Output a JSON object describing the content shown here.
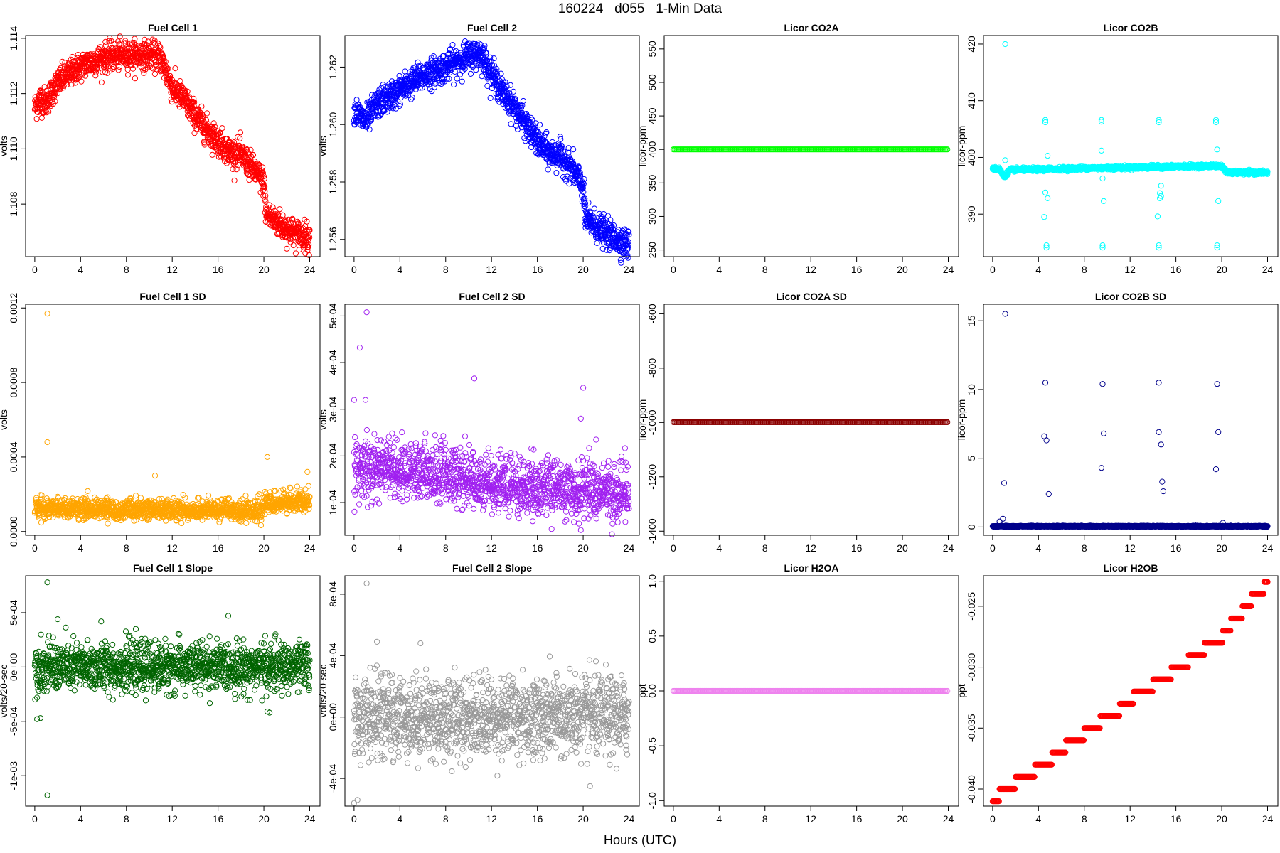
{
  "figure": {
    "title": "160224   d055   1-Min Data",
    "xlabel": "Hours (UTC)"
  },
  "chart_data": [
    {
      "id": "fc1",
      "type": "scatter",
      "title": "Fuel Cell 1",
      "ylabel": "volts",
      "color": "#ff0000",
      "xlim": [
        -0.8,
        24.9
      ],
      "ylim": [
        1.1061,
        1.1141
      ],
      "xticks": [
        0,
        4,
        8,
        12,
        16,
        20,
        24
      ],
      "yticks": [
        1.108,
        1.11,
        1.112,
        1.114
      ],
      "yticklabels": [
        "1.108",
        "1.110",
        "1.112",
        "1.114"
      ],
      "grid": false,
      "n_points": 1440,
      "trend_x": [
        0,
        0.5,
        1,
        2,
        4,
        6,
        8,
        9,
        10,
        11,
        12,
        13,
        14,
        15,
        16,
        17,
        18,
        19,
        19.8,
        20,
        20.2,
        21,
        22,
        23,
        24
      ],
      "trend_y": [
        1.1115,
        1.1118,
        1.1117,
        1.1124,
        1.113,
        1.1133,
        1.1134,
        1.1134,
        1.1134,
        1.1133,
        1.1122,
        1.1118,
        1.1112,
        1.1107,
        1.1103,
        1.1099,
        1.1098,
        1.1093,
        1.1089,
        1.1088,
        1.1076,
        1.1074,
        1.1071,
        1.1069,
        1.1068
      ],
      "noise": 0.00025
    },
    {
      "id": "fc2",
      "type": "scatter",
      "title": "Fuel Cell 2",
      "ylabel": "volts",
      "color": "#0000ff",
      "xlim": [
        -0.8,
        24.9
      ],
      "ylim": [
        1.2554,
        1.2631
      ],
      "xticks": [
        0,
        4,
        8,
        12,
        16,
        20,
        24
      ],
      "yticks": [
        1.256,
        1.258,
        1.26,
        1.262
      ],
      "yticklabels": [
        "1.256",
        "1.258",
        "1.260",
        "1.262"
      ],
      "grid": false,
      "n_points": 1440,
      "trend_x": [
        0,
        0.5,
        1,
        2,
        4,
        6,
        8,
        10,
        11,
        12,
        13,
        14,
        15,
        16,
        17,
        18,
        19,
        20,
        20.2,
        21,
        22,
        23,
        24
      ],
      "trend_y": [
        1.2605,
        1.2603,
        1.2601,
        1.2607,
        1.2612,
        1.2617,
        1.262,
        1.2624,
        1.2625,
        1.2618,
        1.2611,
        1.2606,
        1.26,
        1.2594,
        1.259,
        1.2589,
        1.2585,
        1.2578,
        1.2567,
        1.2565,
        1.2562,
        1.256,
        1.2558
      ],
      "noise": 0.00025
    },
    {
      "id": "co2a",
      "type": "scatter",
      "title": "Licor CO2A",
      "ylabel": "licor-ppm",
      "color": "#00ff00",
      "xlim": [
        -0.8,
        24.9
      ],
      "ylim": [
        240,
        570
      ],
      "xticks": [
        0,
        4,
        8,
        12,
        16,
        20,
        24
      ],
      "yticks": [
        250,
        300,
        350,
        400,
        450,
        500,
        550
      ],
      "yticklabels": [
        "250",
        "300",
        "350",
        "400",
        "450",
        "500",
        "550"
      ],
      "grid": false,
      "n_points": 1440,
      "trend_x": [
        0,
        24
      ],
      "trend_y": [
        400,
        400
      ],
      "noise": 0
    },
    {
      "id": "co2b",
      "type": "scatter",
      "title": "Licor CO2B",
      "ylabel": "licor-ppm",
      "color": "#00ffff",
      "xlim": [
        -0.8,
        24.9
      ],
      "ylim": [
        382.5,
        421.5
      ],
      "xticks": [
        0,
        4,
        8,
        12,
        16,
        20,
        24
      ],
      "yticks": [
        390,
        400,
        410,
        420
      ],
      "yticklabels": [
        "390",
        "400",
        "410",
        "420"
      ],
      "grid": false,
      "n_points": 1440,
      "trend_x": [
        0,
        0.6,
        1.0,
        1.5,
        4,
        8,
        12,
        16,
        20,
        20.5,
        24
      ],
      "trend_y": [
        398,
        398,
        396.5,
        397.8,
        397.9,
        398.1,
        398.2,
        398.4,
        398.5,
        397.3,
        397.3
      ],
      "noise": 0.15,
      "outliers": [
        [
          1.1,
          420
        ],
        [
          1.1,
          399.5
        ],
        [
          1.0,
          397
        ],
        [
          4.6,
          406.6
        ],
        [
          4.6,
          406.2
        ],
        [
          4.6,
          393.8
        ],
        [
          4.5,
          389.5
        ],
        [
          4.7,
          384.5
        ],
        [
          4.7,
          384.1
        ],
        [
          4.8,
          392.8
        ],
        [
          4.8,
          400.3
        ],
        [
          9.5,
          406.6
        ],
        [
          9.5,
          406.3
        ],
        [
          9.5,
          401.2
        ],
        [
          9.6,
          396.3
        ],
        [
          9.7,
          392.3
        ],
        [
          9.6,
          384.5
        ],
        [
          9.6,
          384.1
        ],
        [
          14.5,
          406.6
        ],
        [
          14.5,
          406.2
        ],
        [
          14.4,
          389.6
        ],
        [
          14.6,
          392.8
        ],
        [
          14.7,
          393.2
        ],
        [
          14.6,
          393.7
        ],
        [
          14.7,
          395
        ],
        [
          14.5,
          384.5
        ],
        [
          14.5,
          384.1
        ],
        [
          19.5,
          406.6
        ],
        [
          19.5,
          406.2
        ],
        [
          19.6,
          401.4
        ],
        [
          19.7,
          392.3
        ],
        [
          19.6,
          384.5
        ],
        [
          19.6,
          384.1
        ]
      ]
    },
    {
      "id": "fc1sd",
      "type": "scatter",
      "title": "Fuel Cell 1 SD",
      "ylabel": "volts",
      "color": "#ffa500",
      "xlim": [
        -0.8,
        24.9
      ],
      "ylim": [
        -2e-05,
        0.00122
      ],
      "xticks": [
        0,
        4,
        8,
        12,
        16,
        20,
        24
      ],
      "yticks": [
        0,
        0.0004,
        0.0008,
        0.0012
      ],
      "yticklabels": [
        "0.0000",
        "0.0004",
        "0.0008",
        "0.0012"
      ],
      "grid": false,
      "n_points": 1440,
      "trend_x": [
        0,
        19.8,
        20,
        21,
        24
      ],
      "trend_y": [
        0.00012,
        0.00011,
        0.00015,
        0.00015,
        0.00016
      ],
      "noise": 3e-05,
      "outliers": [
        [
          1.1,
          0.00117
        ],
        [
          1.1,
          0.00048
        ],
        [
          10.5,
          0.0003
        ],
        [
          20.3,
          0.0004
        ],
        [
          23.8,
          0.00032
        ]
      ]
    },
    {
      "id": "fc2sd",
      "type": "scatter",
      "title": "Fuel Cell 2 SD",
      "ylabel": "volts",
      "color": "#a020f0",
      "xlim": [
        -0.8,
        24.9
      ],
      "ylim": [
        3e-05,
        0.000525
      ],
      "xticks": [
        0,
        4,
        8,
        12,
        16,
        20,
        24
      ],
      "yticks": [
        0.0001,
        0.0002,
        0.0003,
        0.0004,
        0.0005
      ],
      "yticklabels": [
        "1e-04",
        "2e-04",
        "3e-04",
        "4e-04",
        "5e-04"
      ],
      "grid": false,
      "n_points": 1440,
      "trend_x": [
        0,
        2,
        5,
        8,
        12,
        16,
        20,
        24
      ],
      "trend_y": [
        0.000165,
        0.00017,
        0.00017,
        0.000155,
        0.00014,
        0.00013,
        0.000125,
        0.000125
      ],
      "noise": 3.5e-05,
      "outliers": [
        [
          1.1,
          0.000508
        ],
        [
          0.5,
          0.000432
        ],
        [
          0,
          0.00032
        ],
        [
          1.0,
          0.00032
        ],
        [
          10.5,
          0.000366
        ],
        [
          20,
          0.000346
        ],
        [
          19.8,
          0.00028
        ]
      ]
    },
    {
      "id": "co2asd",
      "type": "scatter",
      "title": "Licor CO2A SD",
      "ylabel": "licor-ppm",
      "color": "#8b0000",
      "xlim": [
        -0.8,
        24.9
      ],
      "ylim": [
        -1415,
        -565
      ],
      "xticks": [
        0,
        4,
        8,
        12,
        16,
        20,
        24
      ],
      "yticks": [
        -1400,
        -1200,
        -1000,
        -800,
        -600
      ],
      "yticklabels": [
        "-1400",
        "-1200",
        "-1000",
        "-800",
        "-600"
      ],
      "grid": false,
      "n_points": 1440,
      "trend_x": [
        0,
        24
      ],
      "trend_y": [
        -999,
        -999
      ],
      "noise": 0
    },
    {
      "id": "co2bsd",
      "type": "scatter",
      "title": "Licor CO2B SD",
      "ylabel": "licor-ppm",
      "color": "#00008b",
      "xlim": [
        -0.8,
        24.9
      ],
      "ylim": [
        -0.6,
        16.2
      ],
      "xticks": [
        0,
        4,
        8,
        12,
        16,
        20,
        24
      ],
      "yticks": [
        0,
        5,
        10,
        15
      ],
      "yticklabels": [
        "0",
        "5",
        "10",
        "15"
      ],
      "grid": false,
      "n_points": 1440,
      "trend_x": [
        0,
        24
      ],
      "trend_y": [
        0.05,
        0.05
      ],
      "noise": 0.02,
      "outliers": [
        [
          1.1,
          15.5
        ],
        [
          1.0,
          3.2
        ],
        [
          0.9,
          0.6
        ],
        [
          0.6,
          0.4
        ],
        [
          4.6,
          10.5
        ],
        [
          4.5,
          6.6
        ],
        [
          4.7,
          6.3
        ],
        [
          4.9,
          2.4
        ],
        [
          9.6,
          10.4
        ],
        [
          9.7,
          6.8
        ],
        [
          9.5,
          4.3
        ],
        [
          14.5,
          10.5
        ],
        [
          14.5,
          6.9
        ],
        [
          14.7,
          6.0
        ],
        [
          14.8,
          3.3
        ],
        [
          14.9,
          2.6
        ],
        [
          19.6,
          10.4
        ],
        [
          19.7,
          6.9
        ],
        [
          19.5,
          4.2
        ],
        [
          20.1,
          0.3
        ],
        [
          17.6,
          0.15
        ]
      ]
    },
    {
      "id": "fc1slope",
      "type": "scatter",
      "title": "Fuel Cell 1 Slope",
      "ylabel": "volts/20-sec",
      "color": "#006400",
      "xlim": [
        -0.8,
        24.9
      ],
      "ylim": [
        -0.00128,
        0.00084
      ],
      "xticks": [
        0,
        4,
        8,
        12,
        16,
        20,
        24
      ],
      "yticks": [
        -0.001,
        -0.0005,
        0,
        0.0005
      ],
      "yticklabels": [
        "-1e-03",
        "-5e-04",
        "0e+00",
        "5e-04"
      ],
      "grid": false,
      "n_points": 1440,
      "trend_x": [
        0,
        24
      ],
      "trend_y": [
        0,
        0
      ],
      "noise": 0.00011,
      "outliers": [
        [
          1.1,
          0.00078
        ],
        [
          1.1,
          -0.00118
        ],
        [
          0.2,
          -0.00048
        ],
        [
          0.5,
          -0.00047
        ],
        [
          2.0,
          0.00044
        ],
        [
          5.8,
          0.00042
        ],
        [
          20.3,
          -0.00041
        ],
        [
          20.5,
          -0.00042
        ]
      ]
    },
    {
      "id": "fc2slope",
      "type": "scatter",
      "title": "Fuel Cell 2 Slope",
      "ylabel": "volts/20-sec",
      "color": "#999999",
      "xlim": [
        -0.8,
        24.9
      ],
      "ylim": [
        -0.00058,
        0.00092
      ],
      "xticks": [
        0,
        4,
        8,
        12,
        16,
        20,
        24
      ],
      "yticks": [
        -0.0004,
        0,
        0.0004,
        0.0008
      ],
      "yticklabels": [
        "-4e-04",
        "0e+00",
        "4e-04",
        "8e-04"
      ],
      "grid": false,
      "n_points": 1440,
      "trend_x": [
        0,
        24
      ],
      "trend_y": [
        0,
        0
      ],
      "noise": 0.00013,
      "outliers": [
        [
          1.1,
          0.00087
        ],
        [
          2.0,
          0.00049
        ],
        [
          0.3,
          -0.00054
        ],
        [
          0.0,
          -0.00056
        ],
        [
          5.8,
          0.00048
        ],
        [
          20.6,
          -0.00045
        ]
      ]
    },
    {
      "id": "h2oa",
      "type": "scatter",
      "title": "Licor H2OA",
      "ylabel": "ppt",
      "color": "#ee82ee",
      "xlim": [
        -0.8,
        24.9
      ],
      "ylim": [
        -1.05,
        1.05
      ],
      "xticks": [
        0,
        4,
        8,
        12,
        16,
        20,
        24
      ],
      "yticks": [
        -1.0,
        -0.5,
        0,
        0.5,
        1.0
      ],
      "yticklabels": [
        "-1.0",
        "-0.5",
        "0.0",
        "0.5",
        "1.0"
      ],
      "grid": false,
      "n_points": 1440,
      "trend_x": [
        0,
        24
      ],
      "trend_y": [
        0,
        0
      ],
      "noise": 0
    },
    {
      "id": "h2ob",
      "type": "scatter",
      "title": "Licor H2OB",
      "ylabel": "ppt",
      "color": "#ff0000",
      "xlim": [
        -0.8,
        24.9
      ],
      "ylim": [
        -0.0414,
        -0.0225
      ],
      "xticks": [
        0,
        4,
        8,
        12,
        16,
        20,
        24
      ],
      "yticks": [
        -0.04,
        -0.035,
        -0.03,
        -0.025
      ],
      "yticklabels": [
        "-0.040",
        "-0.035",
        "-0.030",
        "-0.025"
      ],
      "grid": false,
      "n_points": 1440,
      "steps_x": [
        0,
        0.6,
        2.0,
        3.7,
        5.2,
        6.4,
        8.0,
        9.4,
        11.1,
        12.3,
        14.0,
        15.6,
        17.1,
        18.5,
        20.1,
        20.8,
        21.8,
        22.6,
        23.7,
        24.1
      ],
      "steps_y": [
        -0.041,
        -0.04,
        -0.039,
        -0.038,
        -0.037,
        -0.036,
        -0.035,
        -0.034,
        -0.033,
        -0.032,
        -0.031,
        -0.03,
        -0.029,
        -0.028,
        -0.027,
        -0.026,
        -0.025,
        -0.024,
        -0.023,
        -0.023
      ]
    }
  ]
}
